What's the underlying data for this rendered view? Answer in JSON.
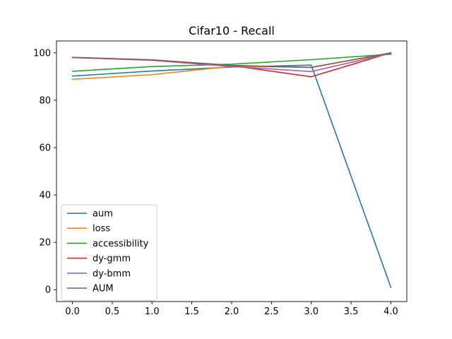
{
  "chart_data": {
    "type": "line",
    "title": "Cifar10 - Recall",
    "xlabel": "",
    "ylabel": "",
    "x": [
      0,
      1,
      2,
      3,
      4
    ],
    "xlim": [
      -0.2,
      4.2
    ],
    "ylim": [
      -5,
      105
    ],
    "xticks": [
      "0.0",
      "0.5",
      "1.0",
      "1.5",
      "2.0",
      "2.5",
      "3.0",
      "3.5",
      "4.0"
    ],
    "xtick_values": [
      0,
      0.5,
      1,
      1.5,
      2,
      2.5,
      3,
      3.5,
      4
    ],
    "yticks": [
      "0",
      "20",
      "40",
      "60",
      "80",
      "100"
    ],
    "ytick_values": [
      0,
      20,
      40,
      60,
      80,
      100
    ],
    "grid": false,
    "legend_position": "lower-left",
    "series": [
      {
        "name": "aum",
        "color": "#1f77b4",
        "values": [
          90.2,
          92.3,
          94.0,
          94.8,
          1.0
        ]
      },
      {
        "name": "loss",
        "color": "#ff7f0e",
        "values": [
          88.8,
          90.8,
          94.3,
          93.9,
          99.8
        ]
      },
      {
        "name": "accessibility",
        "color": "#2ca02c",
        "values": [
          92.2,
          94.2,
          95.2,
          97.1,
          99.4
        ]
      },
      {
        "name": "dy-gmm",
        "color": "#d62728",
        "values": [
          98.0,
          97.0,
          94.6,
          89.9,
          100.0
        ]
      },
      {
        "name": "dy-bmm",
        "color": "#9467bd",
        "values": [
          98.0,
          96.8,
          94.2,
          92.1,
          99.8
        ]
      },
      {
        "name": "AUM",
        "color": "#8c564b",
        "values": [
          98.1,
          97.0,
          94.7,
          93.8,
          100.0
        ]
      }
    ]
  }
}
